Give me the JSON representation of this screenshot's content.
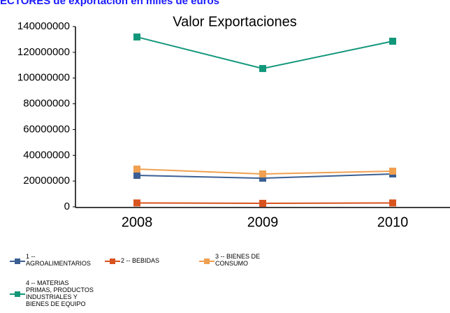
{
  "chart_data": {
    "type": "line",
    "subtitle": "ECTORES de exportación en miles de euros",
    "title": "Valor Exportaciones",
    "categories": [
      "2008",
      "2009",
      "2010"
    ],
    "series": [
      {
        "name": "1 -- AGROALIMENTARIOS",
        "color": "#3b5f93",
        "values": [
          24400000,
          22200000,
          25500000
        ]
      },
      {
        "name": "2 -- BEBIDAS",
        "color": "#d9531e",
        "values": [
          3000000,
          2700000,
          3000000
        ]
      },
      {
        "name": "3 -- BIENES DE CONSUMO",
        "color": "#f0a050",
        "values": [
          29300000,
          25500000,
          27700000
        ]
      },
      {
        "name": "4 -- MATERIAS PRIMAS, PRODUCTOS INDUSTRIALES Y BIENES DE EQUIPO",
        "color": "#12977a",
        "values": [
          131900000,
          107400000,
          128600000
        ]
      }
    ],
    "ylim": [
      0,
      140000000
    ],
    "yticks": [
      0,
      20000000,
      40000000,
      60000000,
      80000000,
      100000000,
      120000000,
      140000000
    ],
    "grid": false
  }
}
